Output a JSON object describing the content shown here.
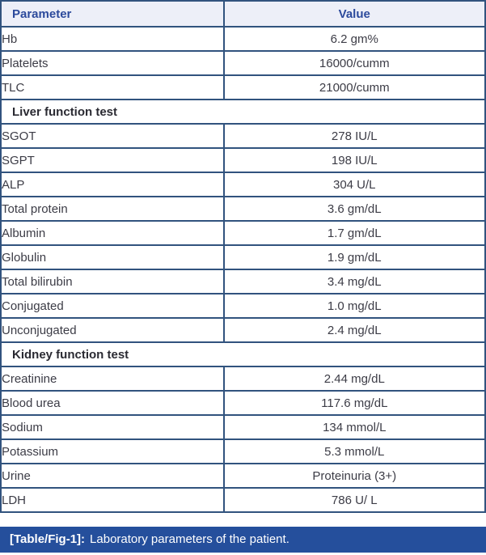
{
  "table": {
    "columns": [
      "Parameter",
      "Value"
    ],
    "rows": [
      {
        "type": "data",
        "parameter": "Hb",
        "value": "6.2 gm%"
      },
      {
        "type": "data",
        "parameter": "Platelets",
        "value": "16000/cumm"
      },
      {
        "type": "data",
        "parameter": "TLC",
        "value": "21000/cumm"
      },
      {
        "type": "section",
        "label": "Liver function test"
      },
      {
        "type": "data",
        "parameter": "SGOT",
        "value": "278 IU/L"
      },
      {
        "type": "data",
        "parameter": "SGPT",
        "value": "198 IU/L"
      },
      {
        "type": "data",
        "parameter": "ALP",
        "value": "304 U/L"
      },
      {
        "type": "data",
        "parameter": "Total protein",
        "value": "3.6 gm/dL"
      },
      {
        "type": "data",
        "parameter": "Albumin",
        "value": "1.7 gm/dL"
      },
      {
        "type": "data",
        "parameter": "Globulin",
        "value": "1.9 gm/dL"
      },
      {
        "type": "data",
        "parameter": "Total bilirubin",
        "value": "3.4 mg/dL"
      },
      {
        "type": "data",
        "parameter": "Conjugated",
        "value": "1.0 mg/dL"
      },
      {
        "type": "data",
        "parameter": "Unconjugated",
        "value": "2.4 mg/dL"
      },
      {
        "type": "section",
        "label": "Kidney function test"
      },
      {
        "type": "data",
        "parameter": "Creatinine",
        "value": "2.44 mg/dL"
      },
      {
        "type": "data",
        "parameter": "Blood urea",
        "value": "117.6 mg/dL"
      },
      {
        "type": "data",
        "parameter": "Sodium",
        "value": "134 mmol/L"
      },
      {
        "type": "data",
        "parameter": "Potassium",
        "value": "5.3 mmol/L"
      },
      {
        "type": "data",
        "parameter": "Urine",
        "value": "Proteinuria (3+)"
      },
      {
        "type": "data",
        "parameter": "LDH",
        "value": "786 U/ L"
      }
    ],
    "caption_label": "[Table/Fig-1]:",
    "caption_text": "Laboratory parameters of the patient."
  },
  "colors": {
    "header_bg": "#edeff8",
    "header_text": "#2c4a9c",
    "border": "#31537e",
    "body_text": "#3c3c46",
    "caption_bg": "#254f9c",
    "caption_text": "#ffffff"
  }
}
